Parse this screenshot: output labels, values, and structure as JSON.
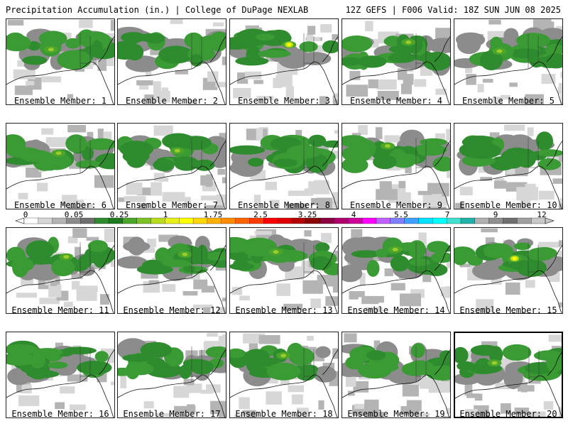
{
  "header": {
    "left": "Precipitation Accumulation (in.) | College of DuPage NEXLAB",
    "right": "12Z GEFS | F006 Valid: 18Z SUN JUN 08 2025"
  },
  "panels": [
    {
      "label": "Ensemble Member: 1",
      "peak": "light"
    },
    {
      "label": "Ensemble Member: 2",
      "peak": "none"
    },
    {
      "label": "Ensemble Member: 3",
      "peak": "yellow"
    },
    {
      "label": "Ensemble Member: 4",
      "peak": "light"
    },
    {
      "label": "Ensemble Member: 5",
      "peak": "light"
    },
    {
      "label": "Ensemble Member: 6",
      "peak": "light"
    },
    {
      "label": "Ensemble Member: 7",
      "peak": "light"
    },
    {
      "label": "Ensemble Member: 8",
      "peak": "none"
    },
    {
      "label": "Ensemble Member: 9",
      "peak": "light"
    },
    {
      "label": "Ensemble Member: 10",
      "peak": "none"
    },
    {
      "label": "Ensemble Member: 11",
      "peak": "light"
    },
    {
      "label": "Ensemble Member: 12",
      "peak": "light"
    },
    {
      "label": "Ensemble Member: 13",
      "peak": "light"
    },
    {
      "label": "Ensemble Member: 14",
      "peak": "light"
    },
    {
      "label": "Ensemble Member: 15",
      "peak": "yellow"
    },
    {
      "label": "Ensemble Member: 16",
      "peak": "none"
    },
    {
      "label": "Ensemble Member: 17",
      "peak": "none"
    },
    {
      "label": "Ensemble Member: 18",
      "peak": "light"
    },
    {
      "label": "Ensemble Member: 19",
      "peak": "none"
    },
    {
      "label": "Ensemble Member: 20",
      "peak": "light",
      "selected": true
    }
  ],
  "colorbar": {
    "tick_labels": [
      "0",
      "0.05",
      "0.25",
      "1",
      "1.75",
      "2.5",
      "3.25",
      "4",
      "5.5",
      "7",
      "9",
      "12"
    ],
    "colors": [
      "#ffffff",
      "#d7d7d7",
      "#b4b4b4",
      "#8c8c8c",
      "#6e6e6e",
      "#2e8b2e",
      "#1f7a1f",
      "#4aa52a",
      "#7cc224",
      "#b8dc1c",
      "#e8f01a",
      "#ffff00",
      "#ffd700",
      "#ffb000",
      "#ff8c00",
      "#ff6400",
      "#ff3c00",
      "#ff0000",
      "#e00000",
      "#b40000",
      "#8b0000",
      "#8b0040",
      "#b0006e",
      "#d0009c",
      "#ff00ff",
      "#c060ff",
      "#8080ff",
      "#40a0ff",
      "#00e0ff",
      "#00ffff",
      "#40e0d0",
      "#20b2aa",
      "#b0b0b0",
      "#909090",
      "#707070",
      "#a0a0a0",
      "#c8c8c8"
    ]
  }
}
